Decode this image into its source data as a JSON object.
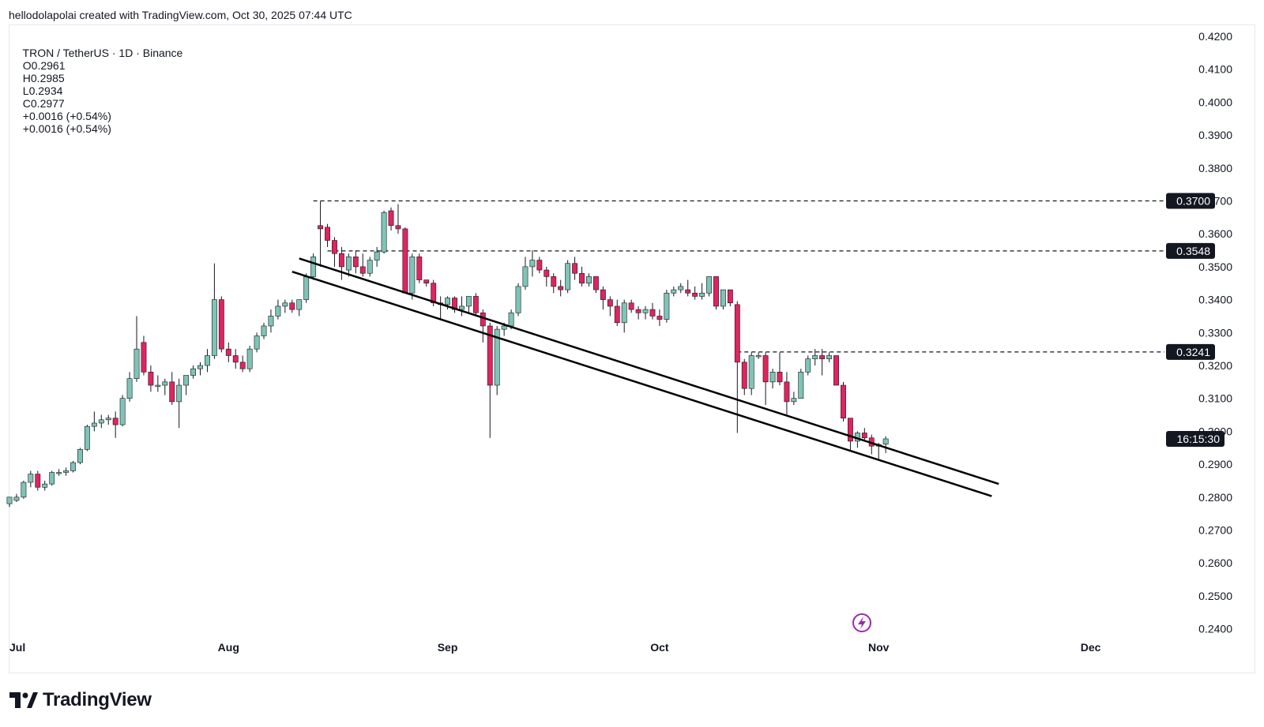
{
  "header": {
    "credit": "hellodolapolai created with TradingView.com, Oct 30, 2025 07:44 UTC"
  },
  "legend": {
    "symbol": "TRON / TetherUS · 1D · Binance",
    "open": "O0.2961",
    "high": "H0.2985",
    "low": "L0.2934",
    "close": "C0.2977",
    "change1": "+0.0016 (+0.54%)",
    "change2": "+0.0016 (+0.54%)"
  },
  "footer": {
    "brand": "TradingView"
  },
  "colors": {
    "up": "#7fc4b6",
    "down": "#e0245e",
    "axis_text": "#131722",
    "trendline": "#000000",
    "flash_icon": "#9c27b0"
  },
  "chart_data": {
    "type": "candlestick",
    "symbol": "TRON / TetherUS",
    "interval": "1D",
    "exchange": "Binance",
    "ylim": [
      0.24,
      0.42
    ],
    "y_ticks": [
      "0.4200",
      "0.4100",
      "0.4000",
      "0.3900",
      "0.3800",
      "0.3700",
      "0.3600",
      "0.3500",
      "0.3400",
      "0.3300",
      "0.3200",
      "0.3100",
      "0.3000",
      "0.2900",
      "0.2800",
      "0.2700",
      "0.2600",
      "0.2500",
      "0.2400"
    ],
    "x_ticks": [
      {
        "label": "Jul",
        "date": "2025-07-01"
      },
      {
        "label": "Aug",
        "date": "2025-08-01"
      },
      {
        "label": "Sep",
        "date": "2025-09-01"
      },
      {
        "label": "Oct",
        "date": "2025-10-01"
      },
      {
        "label": "Nov",
        "date": "2025-11-01"
      },
      {
        "label": "Dec",
        "date": "2025-12-01"
      }
    ],
    "x_range": [
      "2025-07-01",
      "2025-12-11"
    ],
    "start_date": "2025-07-01",
    "candles": [
      [
        0.278,
        0.28,
        0.277,
        0.28
      ],
      [
        0.279,
        0.281,
        0.2785,
        0.28
      ],
      [
        0.28,
        0.285,
        0.2795,
        0.2845
      ],
      [
        0.2845,
        0.288,
        0.283,
        0.287
      ],
      [
        0.287,
        0.288,
        0.282,
        0.283
      ],
      [
        0.283,
        0.285,
        0.282,
        0.284
      ],
      [
        0.284,
        0.288,
        0.2835,
        0.2875
      ],
      [
        0.2875,
        0.2885,
        0.2865,
        0.2875
      ],
      [
        0.2875,
        0.289,
        0.2865,
        0.288
      ],
      [
        0.288,
        0.291,
        0.2875,
        0.2905
      ],
      [
        0.2905,
        0.295,
        0.29,
        0.2945
      ],
      [
        0.2945,
        0.302,
        0.294,
        0.3015
      ],
      [
        0.3015,
        0.306,
        0.3,
        0.3025
      ],
      [
        0.3025,
        0.305,
        0.301,
        0.3035
      ],
      [
        0.3035,
        0.305,
        0.302,
        0.304
      ],
      [
        0.304,
        0.306,
        0.298,
        0.302
      ],
      [
        0.302,
        0.311,
        0.3015,
        0.31
      ],
      [
        0.31,
        0.318,
        0.309,
        0.316
      ],
      [
        0.316,
        0.335,
        0.315,
        0.325
      ],
      [
        0.327,
        0.329,
        0.317,
        0.318
      ],
      [
        0.318,
        0.32,
        0.312,
        0.314
      ],
      [
        0.314,
        0.317,
        0.312,
        0.314
      ],
      [
        0.314,
        0.316,
        0.311,
        0.315
      ],
      [
        0.315,
        0.318,
        0.308,
        0.309
      ],
      [
        0.309,
        0.316,
        0.301,
        0.314
      ],
      [
        0.314,
        0.317,
        0.311,
        0.317
      ],
      [
        0.317,
        0.32,
        0.316,
        0.319
      ],
      [
        0.319,
        0.321,
        0.317,
        0.32
      ],
      [
        0.32,
        0.325,
        0.318,
        0.323
      ],
      [
        0.323,
        0.351,
        0.322,
        0.34
      ],
      [
        0.34,
        0.341,
        0.324,
        0.325
      ],
      [
        0.325,
        0.327,
        0.321,
        0.323
      ],
      [
        0.323,
        0.325,
        0.319,
        0.321
      ],
      [
        0.321,
        0.323,
        0.318,
        0.319
      ],
      [
        0.319,
        0.326,
        0.318,
        0.325
      ],
      [
        0.325,
        0.33,
        0.324,
        0.329
      ],
      [
        0.329,
        0.333,
        0.328,
        0.332
      ],
      [
        0.332,
        0.337,
        0.33,
        0.335
      ],
      [
        0.335,
        0.34,
        0.334,
        0.338
      ],
      [
        0.338,
        0.34,
        0.336,
        0.339
      ],
      [
        0.339,
        0.34,
        0.336,
        0.337
      ],
      [
        0.337,
        0.34,
        0.335,
        0.34
      ],
      [
        0.34,
        0.348,
        0.339,
        0.347
      ],
      [
        0.347,
        0.354,
        0.346,
        0.353
      ],
      [
        0.3625,
        0.37,
        0.35,
        0.3615
      ],
      [
        0.362,
        0.363,
        0.356,
        0.358
      ],
      [
        0.358,
        0.359,
        0.35,
        0.354
      ],
      [
        0.354,
        0.356,
        0.346,
        0.35
      ],
      [
        0.349,
        0.354,
        0.347,
        0.353
      ],
      [
        0.353,
        0.355,
        0.348,
        0.35
      ],
      [
        0.35,
        0.354,
        0.347,
        0.348
      ],
      [
        0.348,
        0.353,
        0.347,
        0.352
      ],
      [
        0.352,
        0.356,
        0.35,
        0.3545
      ],
      [
        0.3545,
        0.367,
        0.354,
        0.3665
      ],
      [
        0.367,
        0.368,
        0.361,
        0.3625
      ],
      [
        0.3625,
        0.369,
        0.36,
        0.3615
      ],
      [
        0.3615,
        0.362,
        0.342,
        0.342
      ],
      [
        0.342,
        0.354,
        0.34,
        0.353
      ],
      [
        0.353,
        0.354,
        0.345,
        0.346
      ],
      [
        0.346,
        0.346,
        0.344,
        0.345
      ],
      [
        0.345,
        0.346,
        0.338,
        0.339
      ],
      [
        0.339,
        0.341,
        0.334,
        0.3385
      ],
      [
        0.3385,
        0.341,
        0.337,
        0.3405
      ],
      [
        0.3405,
        0.341,
        0.336,
        0.337
      ],
      [
        0.337,
        0.341,
        0.335,
        0.338
      ],
      [
        0.338,
        0.341,
        0.336,
        0.341
      ],
      [
        0.341,
        0.342,
        0.335,
        0.336
      ],
      [
        0.336,
        0.337,
        0.327,
        0.332
      ],
      [
        0.332,
        0.333,
        0.298,
        0.314
      ],
      [
        0.314,
        0.332,
        0.311,
        0.331
      ],
      [
        0.331,
        0.333,
        0.329,
        0.332
      ],
      [
        0.332,
        0.337,
        0.331,
        0.336
      ],
      [
        0.336,
        0.345,
        0.335,
        0.344
      ],
      [
        0.344,
        0.353,
        0.343,
        0.35
      ],
      [
        0.35,
        0.355,
        0.347,
        0.352
      ],
      [
        0.352,
        0.353,
        0.348,
        0.349
      ],
      [
        0.349,
        0.35,
        0.344,
        0.347
      ],
      [
        0.347,
        0.348,
        0.342,
        0.344
      ],
      [
        0.344,
        0.346,
        0.341,
        0.343
      ],
      [
        0.343,
        0.352,
        0.342,
        0.351
      ],
      [
        0.351,
        0.353,
        0.346,
        0.348
      ],
      [
        0.348,
        0.35,
        0.344,
        0.345
      ],
      [
        0.345,
        0.348,
        0.344,
        0.347
      ],
      [
        0.347,
        0.347,
        0.342,
        0.343
      ],
      [
        0.343,
        0.344,
        0.337,
        0.34
      ],
      [
        0.34,
        0.341,
        0.335,
        0.338
      ],
      [
        0.338,
        0.34,
        0.332,
        0.333
      ],
      [
        0.333,
        0.34,
        0.33,
        0.339
      ],
      [
        0.339,
        0.34,
        0.336,
        0.337
      ],
      [
        0.337,
        0.338,
        0.334,
        0.336
      ],
      [
        0.336,
        0.338,
        0.334,
        0.337
      ],
      [
        0.337,
        0.339,
        0.334,
        0.335
      ],
      [
        0.335,
        0.337,
        0.332,
        0.334
      ],
      [
        0.334,
        0.343,
        0.333,
        0.342
      ],
      [
        0.342,
        0.344,
        0.341,
        0.343
      ],
      [
        0.343,
        0.345,
        0.342,
        0.344
      ],
      [
        0.343,
        0.346,
        0.341,
        0.342
      ],
      [
        0.342,
        0.344,
        0.34,
        0.341
      ],
      [
        0.341,
        0.345,
        0.34,
        0.342
      ],
      [
        0.342,
        0.347,
        0.341,
        0.347
      ],
      [
        0.347,
        0.347,
        0.337,
        0.338
      ],
      [
        0.338,
        0.343,
        0.337,
        0.343
      ],
      [
        0.343,
        0.343,
        0.338,
        0.339
      ],
      [
        0.3385,
        0.3395,
        0.2995,
        0.321
      ],
      [
        0.321,
        0.322,
        0.311,
        0.313
      ],
      [
        0.313,
        0.324,
        0.311,
        0.323
      ],
      [
        0.323,
        0.324,
        0.322,
        0.323
      ],
      [
        0.323,
        0.324,
        0.308,
        0.315
      ],
      [
        0.315,
        0.319,
        0.313,
        0.318
      ],
      [
        0.318,
        0.324,
        0.314,
        0.315
      ],
      [
        0.315,
        0.318,
        0.305,
        0.309
      ],
      [
        0.309,
        0.312,
        0.308,
        0.31
      ],
      [
        0.31,
        0.319,
        0.31,
        0.318
      ],
      [
        0.318,
        0.323,
        0.317,
        0.322
      ],
      [
        0.322,
        0.325,
        0.32,
        0.323
      ],
      [
        0.323,
        0.325,
        0.317,
        0.322
      ],
      [
        0.322,
        0.324,
        0.321,
        0.323
      ],
      [
        0.323,
        0.323,
        0.314,
        0.314
      ],
      [
        0.314,
        0.315,
        0.303,
        0.304
      ],
      [
        0.304,
        0.304,
        0.294,
        0.297
      ],
      [
        0.297,
        0.3,
        0.295,
        0.2995
      ],
      [
        0.2995,
        0.301,
        0.297,
        0.298
      ],
      [
        0.298,
        0.299,
        0.293,
        0.2955
      ],
      [
        0.2955,
        0.2965,
        0.291,
        0.296
      ],
      [
        0.2961,
        0.2985,
        0.2934,
        0.2977
      ]
    ],
    "trendlines": [
      {
        "start": {
          "date": "2025-08-11",
          "price": 0.3525
        },
        "end": {
          "date": "2025-11-18",
          "price": 0.284
        }
      },
      {
        "start": {
          "date": "2025-08-10",
          "price": 0.3485
        },
        "end": {
          "date": "2025-11-17",
          "price": 0.2803
        }
      }
    ],
    "price_levels": [
      {
        "price": 0.37,
        "label": "0.3700",
        "start_date": "2025-08-13"
      },
      {
        "price": 0.3548,
        "label": "0.3548",
        "start_date": "2025-08-15"
      },
      {
        "price": 0.3241,
        "label": "0.3241",
        "start_date": "2025-10-12"
      }
    ],
    "countdown": {
      "label": "16:15:30",
      "price": 0.2977
    }
  }
}
